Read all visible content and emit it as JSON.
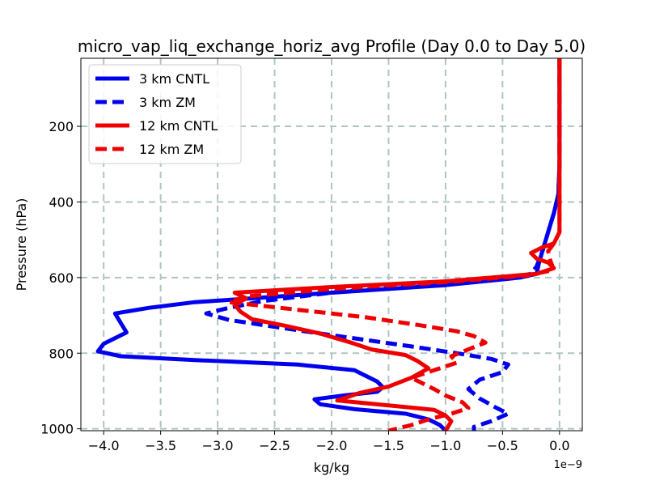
{
  "chart_data": {
    "type": "line",
    "title": "micro_vap_liq_exchange_horiz_avg Profile (Day 0.0 to Day 5.0)",
    "xlabel": "kg/kg",
    "ylabel": "Pressure (hPa)",
    "x_offset_label": "1e−9",
    "xlim": [
      -4.2,
      0.2
    ],
    "ylim": [
      1005,
      20
    ],
    "y_inverted": true,
    "grid": true,
    "legend_position": "upper-left",
    "x_ticks": [
      -4.0,
      -3.5,
      -3.0,
      -2.5,
      -2.0,
      -1.5,
      -1.0,
      -0.5,
      0.0
    ],
    "x_tick_labels": [
      "−4.0",
      "−3.5",
      "−3.0",
      "−2.5",
      "−2.0",
      "−1.5",
      "−1.0",
      "−0.5",
      "0.0"
    ],
    "y_ticks": [
      200,
      400,
      600,
      800,
      1000
    ],
    "y_tick_labels": [
      "200",
      "400",
      "600",
      "800",
      "1000"
    ],
    "series": [
      {
        "name": "3 km CNTL",
        "color": "#0000ee",
        "dash": "solid",
        "points": [
          [
            0.0,
            20
          ],
          [
            0.0,
            100
          ],
          [
            0.0,
            200
          ],
          [
            0.0,
            300
          ],
          [
            -0.01,
            380
          ],
          [
            -0.05,
            430
          ],
          [
            -0.1,
            480
          ],
          [
            -0.15,
            530
          ],
          [
            -0.18,
            560
          ],
          [
            -0.2,
            590
          ],
          [
            -0.35,
            600
          ],
          [
            -1.0,
            620
          ],
          [
            -2.0,
            640
          ],
          [
            -2.7,
            655
          ],
          [
            -3.2,
            665
          ],
          [
            -3.6,
            680
          ],
          [
            -3.9,
            695
          ],
          [
            -3.85,
            720
          ],
          [
            -3.8,
            745
          ],
          [
            -3.9,
            760
          ],
          [
            -4.0,
            775
          ],
          [
            -4.05,
            795
          ],
          [
            -3.85,
            808
          ],
          [
            -3.2,
            818
          ],
          [
            -2.3,
            830
          ],
          [
            -1.8,
            845
          ],
          [
            -1.7,
            860
          ],
          [
            -1.6,
            875
          ],
          [
            -1.55,
            890
          ],
          [
            -1.6,
            902
          ],
          [
            -1.9,
            912
          ],
          [
            -2.15,
            922
          ],
          [
            -2.1,
            935
          ],
          [
            -1.8,
            948
          ],
          [
            -1.35,
            960
          ],
          [
            -1.15,
            975
          ],
          [
            -1.05,
            990
          ],
          [
            -1.0,
            1005
          ]
        ]
      },
      {
        "name": "3 km ZM",
        "color": "#0000ee",
        "dash": "dashed",
        "points": [
          [
            0.0,
            20
          ],
          [
            0.0,
            100
          ],
          [
            0.0,
            200
          ],
          [
            0.0,
            300
          ],
          [
            -0.01,
            380
          ],
          [
            -0.05,
            430
          ],
          [
            -0.1,
            480
          ],
          [
            -0.15,
            530
          ],
          [
            -0.2,
            570
          ],
          [
            -0.25,
            590
          ],
          [
            -0.5,
            605
          ],
          [
            -1.2,
            620
          ],
          [
            -2.0,
            640
          ],
          [
            -2.6,
            662
          ],
          [
            -2.9,
            680
          ],
          [
            -3.1,
            695
          ],
          [
            -2.9,
            712
          ],
          [
            -2.5,
            730
          ],
          [
            -2.1,
            748
          ],
          [
            -1.7,
            765
          ],
          [
            -1.3,
            782
          ],
          [
            -0.9,
            800
          ],
          [
            -0.6,
            815
          ],
          [
            -0.45,
            830
          ],
          [
            -0.5,
            850
          ],
          [
            -0.7,
            870
          ],
          [
            -0.8,
            895
          ],
          [
            -0.7,
            920
          ],
          [
            -0.55,
            945
          ],
          [
            -0.45,
            960
          ],
          [
            -0.6,
            980
          ],
          [
            -0.75,
            995
          ],
          [
            -0.75,
            1005
          ]
        ]
      },
      {
        "name": "12 km CNTL",
        "color": "#ee0000",
        "dash": "solid",
        "points": [
          [
            0.0,
            20
          ],
          [
            0.0,
            100
          ],
          [
            0.0,
            200
          ],
          [
            0.0,
            300
          ],
          [
            0.0,
            380
          ],
          [
            0.0,
            430
          ],
          [
            0.0,
            480
          ],
          [
            -0.05,
            510
          ],
          [
            -0.15,
            520
          ],
          [
            -0.25,
            535
          ],
          [
            -0.2,
            550
          ],
          [
            -0.1,
            560
          ],
          [
            -0.05,
            575
          ],
          [
            -0.2,
            590
          ],
          [
            -1.0,
            610
          ],
          [
            -2.0,
            625
          ],
          [
            -2.85,
            640
          ],
          [
            -2.75,
            655
          ],
          [
            -2.85,
            672
          ],
          [
            -2.8,
            690
          ],
          [
            -2.7,
            710
          ],
          [
            -2.4,
            728
          ],
          [
            -2.1,
            748
          ],
          [
            -1.85,
            770
          ],
          [
            -1.65,
            790
          ],
          [
            -1.35,
            805
          ],
          [
            -1.25,
            820
          ],
          [
            -1.15,
            840
          ],
          [
            -1.3,
            865
          ],
          [
            -1.5,
            888
          ],
          [
            -1.75,
            905
          ],
          [
            -1.95,
            925
          ],
          [
            -1.5,
            938
          ],
          [
            -1.1,
            950
          ],
          [
            -1.0,
            965
          ],
          [
            -0.95,
            980
          ],
          [
            -1.0,
            1005
          ]
        ]
      },
      {
        "name": "12 km ZM",
        "color": "#ee0000",
        "dash": "dashed",
        "points": [
          [
            0.0,
            20
          ],
          [
            0.0,
            100
          ],
          [
            0.0,
            200
          ],
          [
            0.0,
            300
          ],
          [
            0.0,
            380
          ],
          [
            0.0,
            430
          ],
          [
            0.0,
            480
          ],
          [
            -0.05,
            510
          ],
          [
            -0.1,
            530
          ],
          [
            -0.08,
            555
          ],
          [
            -0.05,
            580
          ],
          [
            -0.3,
            595
          ],
          [
            -1.0,
            612
          ],
          [
            -2.0,
            630
          ],
          [
            -2.75,
            650
          ],
          [
            -2.9,
            665
          ],
          [
            -2.3,
            685
          ],
          [
            -1.7,
            705
          ],
          [
            -1.25,
            725
          ],
          [
            -0.9,
            742
          ],
          [
            -0.75,
            755
          ],
          [
            -0.65,
            772
          ],
          [
            -0.8,
            790
          ],
          [
            -0.95,
            808
          ],
          [
            -0.9,
            825
          ],
          [
            -1.1,
            845
          ],
          [
            -1.3,
            865
          ],
          [
            -1.2,
            880
          ],
          [
            -1.1,
            895
          ],
          [
            -1.0,
            912
          ],
          [
            -0.85,
            930
          ],
          [
            -0.8,
            945
          ],
          [
            -0.95,
            960
          ],
          [
            -1.15,
            975
          ],
          [
            -1.3,
            990
          ],
          [
            -1.5,
            1005
          ]
        ]
      }
    ]
  }
}
